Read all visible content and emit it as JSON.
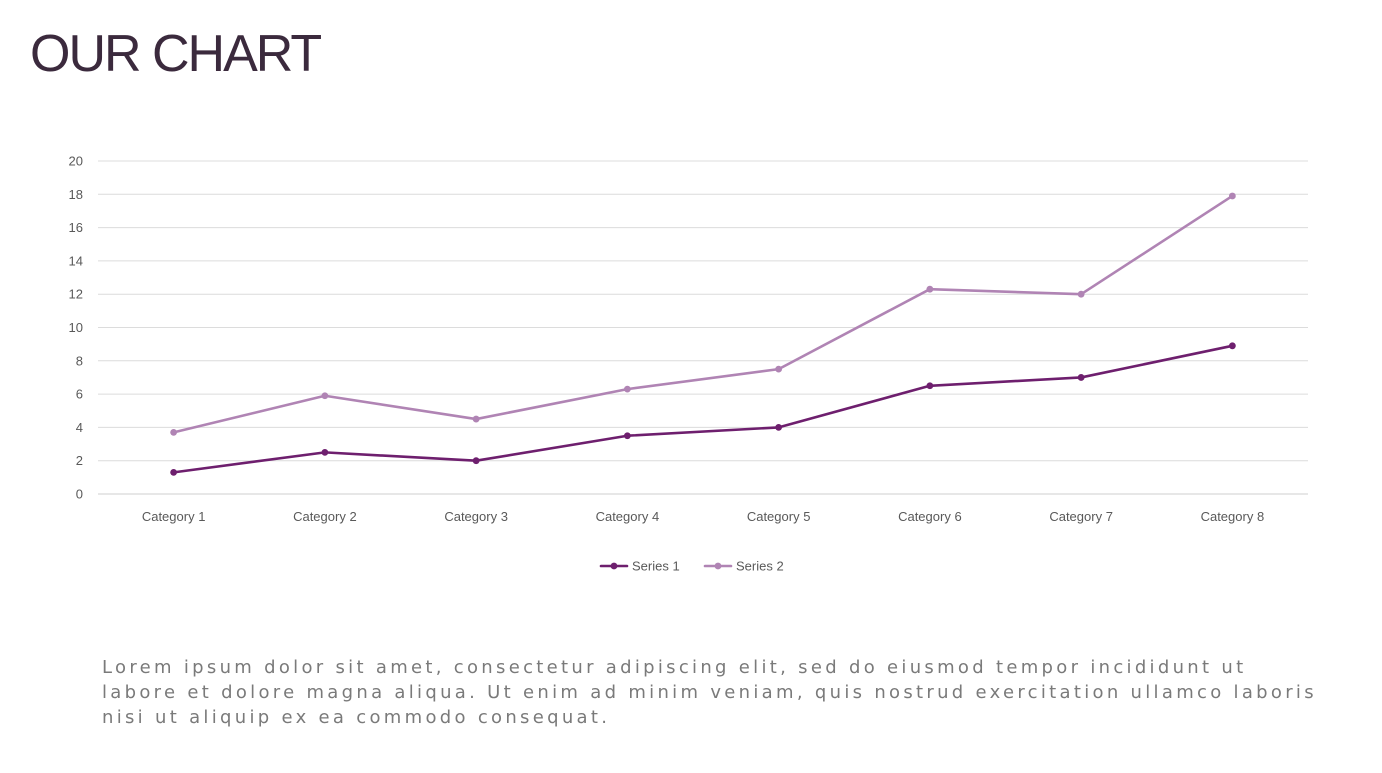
{
  "slide": {
    "title": "OUR CHART",
    "body_text": "Lorem ipsum dolor sit amet, consectetur adipiscing elit, sed do eiusmod tempor incididunt ut labore et dolore magna aliqua. Ut enim ad minim veniam, quis nostrud exercitation ullamco laboris nisi ut aliquip ex ea commodo consequat."
  },
  "chart_data": {
    "type": "line",
    "title": "",
    "xlabel": "",
    "ylabel": "",
    "categories": [
      "Category 1",
      "Category 2",
      "Category 3",
      "Category 4",
      "Category 5",
      "Category 6",
      "Category 7",
      "Category 8"
    ],
    "series": [
      {
        "name": "Series 1",
        "color": "#6e1f6e",
        "values": [
          1.3,
          2.5,
          2.0,
          3.5,
          4.0,
          6.5,
          7.0,
          8.9
        ]
      },
      {
        "name": "Series 2",
        "color": "#b084b4",
        "values": [
          3.7,
          5.9,
          4.5,
          6.3,
          7.5,
          12.3,
          12.0,
          17.9
        ]
      }
    ],
    "ylim": [
      0,
      20
    ],
    "yticks": [
      0,
      2,
      4,
      6,
      8,
      10,
      12,
      14,
      16,
      18,
      20
    ],
    "grid": true,
    "legend": "bottom-center",
    "markers": true
  }
}
